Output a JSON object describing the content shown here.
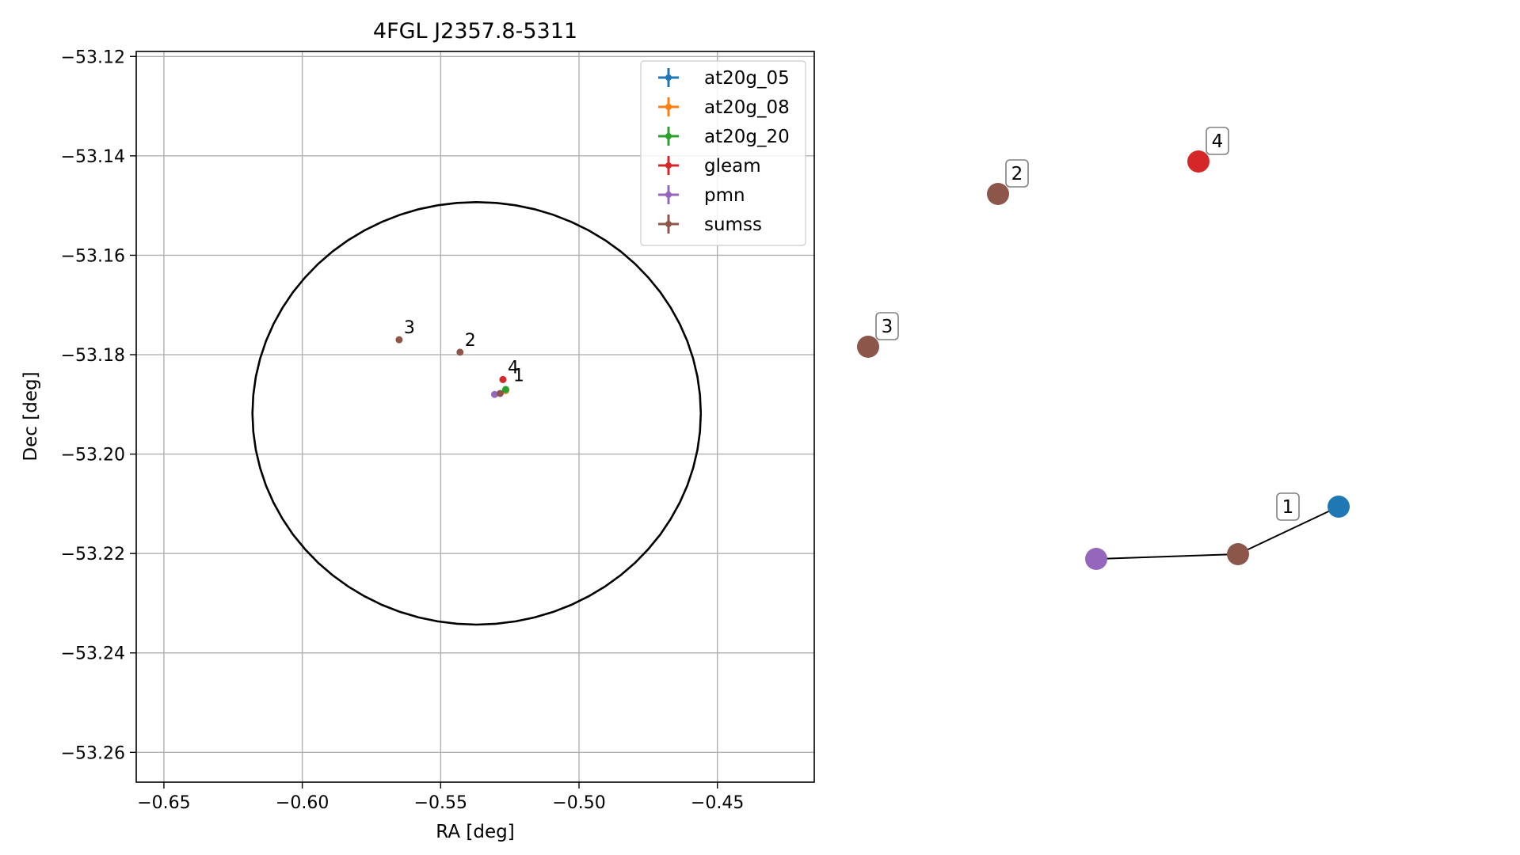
{
  "chart_data": [
    {
      "type": "scatter",
      "title": "4FGL J2357.8-5311",
      "xlabel": "RA [deg]",
      "ylabel": "Dec [deg]",
      "xlim": [
        -0.66,
        -0.415
      ],
      "ylim": [
        -53.266,
        -53.119
      ],
      "xticks": [
        -0.65,
        -0.6,
        -0.55,
        -0.5,
        -0.45
      ],
      "xtick_labels": [
        "−0.65",
        "−0.60",
        "−0.55",
        "−0.50",
        "−0.45"
      ],
      "yticks": [
        -53.12,
        -53.14,
        -53.16,
        -53.18,
        -53.2,
        -53.22,
        -53.24,
        -53.26
      ],
      "ytick_labels": [
        "−53.12",
        "−53.14",
        "−53.16",
        "−53.18",
        "−53.20",
        "−53.22",
        "−53.24",
        "−53.26"
      ],
      "grid": true,
      "legend_position": "top-right",
      "ellipse": {
        "center": [
          -0.537,
          -53.1918
        ],
        "semi_axis_ra": 0.081,
        "semi_axis_dec": 0.0425,
        "color": "#000000"
      },
      "series": [
        {
          "name": "at20g_05",
          "color": "#1f77b4",
          "points": [
            {
              "x": -0.5265,
              "y": -53.1872
            }
          ]
        },
        {
          "name": "at20g_08",
          "color": "#ff7f0e",
          "points": [
            {
              "x": -0.5265,
              "y": -53.1872
            }
          ]
        },
        {
          "name": "at20g_20",
          "color": "#2ca02c",
          "points": [
            {
              "x": -0.5265,
              "y": -53.187
            }
          ]
        },
        {
          "name": "gleam",
          "color": "#d62728",
          "points": [
            {
              "x": -0.5275,
              "y": -53.185
            }
          ]
        },
        {
          "name": "pmn",
          "color": "#9467bd",
          "points": [
            {
              "x": -0.5305,
              "y": -53.188
            }
          ]
        },
        {
          "name": "sumss",
          "color": "#8c564b",
          "points": [
            {
              "x": -0.5285,
              "y": -53.1878
            },
            {
              "x": -0.543,
              "y": -53.1795
            },
            {
              "x": -0.565,
              "y": -53.177
            }
          ]
        }
      ],
      "annotations": [
        {
          "text": "1",
          "x": -0.5255,
          "y": -53.1866
        },
        {
          "text": "2",
          "x": -0.543,
          "y": -53.1795
        },
        {
          "text": "3",
          "x": -0.565,
          "y": -53.177
        },
        {
          "text": "4",
          "x": -0.5275,
          "y": -53.185
        }
      ]
    },
    {
      "type": "network",
      "nodes": [
        {
          "id": "at20g",
          "color": "#1f77b4"
        },
        {
          "id": "sumss-1",
          "color": "#8c564b"
        },
        {
          "id": "pmn",
          "color": "#9467bd"
        },
        {
          "id": "sumss-2",
          "color": "#8c564b",
          "label": "2"
        },
        {
          "id": "sumss-3",
          "color": "#8c564b",
          "label": "3"
        },
        {
          "id": "gleam",
          "color": "#d62728",
          "label": "4"
        }
      ],
      "edges": [
        [
          "at20g",
          "sumss-1"
        ],
        [
          "sumss-1",
          "pmn"
        ]
      ],
      "group_labels": [
        {
          "text": "1"
        }
      ]
    }
  ]
}
